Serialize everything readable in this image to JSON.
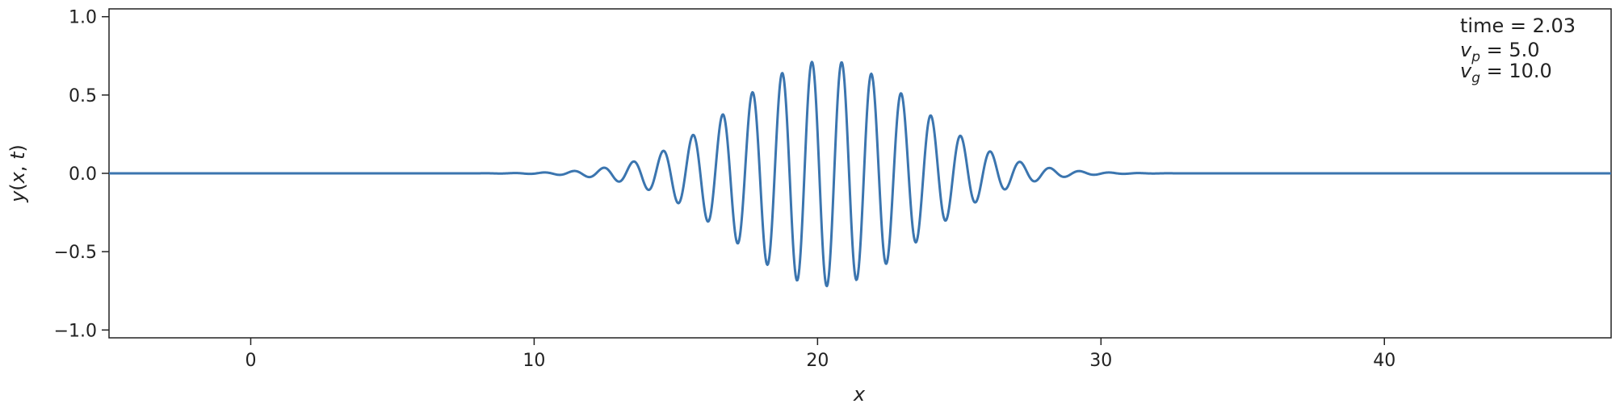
{
  "chart_data": {
    "type": "line",
    "title": "",
    "xlabel": "x",
    "ylabel": "y(x, t)",
    "ylabel_parts": {
      "func": "y",
      "open": "(",
      "var1": "x",
      "comma": ", ",
      "var2": "t",
      "close": ")"
    },
    "xlim": [
      -5,
      48
    ],
    "ylim": [
      -1.05,
      1.05
    ],
    "xticks": [
      0,
      10,
      20,
      30,
      40
    ],
    "yticks": [
      -1.0,
      -0.5,
      0.0,
      0.5,
      1.0
    ],
    "xtick_labels": [
      "0",
      "10",
      "20",
      "30",
      "40"
    ],
    "ytick_labels": [
      "−1.0",
      "−0.5",
      "0.0",
      "0.5",
      "1.0"
    ],
    "grid": false,
    "series": [
      {
        "color": "#3b75af",
        "wave": {
          "amplitude": 0.72,
          "center": 20.3,
          "envelope_sigma": 3.2,
          "wavelength": 1.05,
          "phase_x0": 19.8
        }
      }
    ],
    "annotations": {
      "time_label": "time = 2.03",
      "vp_symbol": "v",
      "vp_sub": "p",
      "vp_value": " = 5.0",
      "vg_symbol": "v",
      "vg_sub": "g",
      "vg_value": " = 10.0"
    }
  }
}
